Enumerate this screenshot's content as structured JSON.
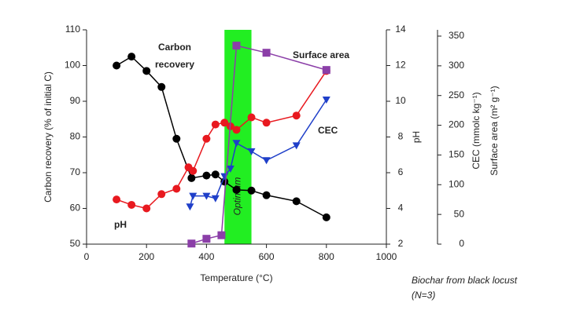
{
  "chart_data": {
    "type": "line",
    "x_label": "Temperature (°C)",
    "y_label": "Carbon recovery (% of initial C)",
    "y2_label": "pH",
    "y3_labels": [
      "CEC (mmolc kg⁻¹)",
      "Surface area (m² g⁻¹)"
    ],
    "xlim": [
      0,
      1000
    ],
    "xticks": [
      0,
      200,
      400,
      600,
      800,
      1000
    ],
    "ylim": [
      50,
      110
    ],
    "yticks": [
      50,
      60,
      70,
      80,
      90,
      100,
      110
    ],
    "y2lim": [
      2,
      14
    ],
    "y2ticks": [
      2,
      4,
      6,
      8,
      10,
      12,
      14
    ],
    "y3lim": [
      0,
      350
    ],
    "y3ticks": [
      0,
      50,
      100,
      150,
      200,
      250,
      300,
      350
    ],
    "optimum_band": {
      "label": "Optimum",
      "xrange": [
        460,
        550
      ],
      "color": "#22ee22"
    },
    "series": [
      {
        "name": "Carbon recovery",
        "display": [
          "Carbon",
          "recovery"
        ],
        "color": "#000000",
        "marker": "circle",
        "axis": "y",
        "x": [
          100,
          150,
          200,
          250,
          300,
          350,
          400,
          430,
          460,
          500,
          550,
          600,
          700,
          800
        ],
        "values": [
          100,
          102.5,
          98.5,
          94,
          79.5,
          68.5,
          69.2,
          69.5,
          67.5,
          65.2,
          65,
          63.7,
          62,
          57.5
        ]
      },
      {
        "name": "pH",
        "color": "#e8191f",
        "marker": "circle",
        "axis": "y2",
        "x": [
          100,
          150,
          200,
          250,
          300,
          340,
          355,
          400,
          430,
          460,
          480,
          500,
          550,
          600,
          700,
          800
        ],
        "values": [
          4.5,
          4.2,
          4.0,
          4.8,
          5.1,
          6.3,
          6.1,
          7.9,
          8.7,
          8.8,
          8.6,
          8.4,
          9.1,
          8.8,
          9.2,
          11.7
        ]
      },
      {
        "name": "CEC",
        "color": "#1f3fc9",
        "marker": "triangle",
        "axis": "y3",
        "x": [
          345,
          355,
          400,
          430,
          460,
          480,
          500,
          550,
          600,
          700,
          800
        ],
        "values": [
          63,
          81,
          81,
          77,
          114,
          127,
          170,
          156,
          141,
          166,
          243
        ]
      },
      {
        "name": "Surface area",
        "color": "#8b3fa8",
        "marker": "square",
        "axis": "y3",
        "x": [
          350,
          400,
          450,
          500,
          600,
          800
        ],
        "values": [
          1,
          9,
          15,
          334,
          322,
          293
        ]
      }
    ],
    "note": [
      "Biochar from black locust",
      "(N=3)"
    ]
  }
}
